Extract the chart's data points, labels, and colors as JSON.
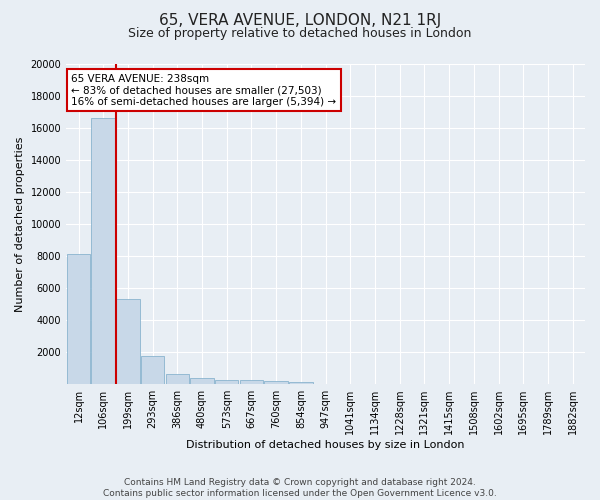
{
  "title": "65, VERA AVENUE, LONDON, N21 1RJ",
  "subtitle": "Size of property relative to detached houses in London",
  "xlabel": "Distribution of detached houses by size in London",
  "ylabel": "Number of detached properties",
  "categories": [
    "12sqm",
    "106sqm",
    "199sqm",
    "293sqm",
    "386sqm",
    "480sqm",
    "573sqm",
    "667sqm",
    "760sqm",
    "854sqm",
    "947sqm",
    "1041sqm",
    "1134sqm",
    "1228sqm",
    "1321sqm",
    "1415sqm",
    "1508sqm",
    "1602sqm",
    "1695sqm",
    "1789sqm",
    "1882sqm"
  ],
  "values": [
    8100,
    16600,
    5300,
    1750,
    650,
    350,
    270,
    230,
    200,
    160,
    0,
    0,
    0,
    0,
    0,
    0,
    0,
    0,
    0,
    0,
    0
  ],
  "bar_color": "#c8d8e8",
  "bar_edge_color": "#7aaac8",
  "vline_color": "#cc0000",
  "annotation_text": "65 VERA AVENUE: 238sqm\n← 83% of detached houses are smaller (27,503)\n16% of semi-detached houses are larger (5,394) →",
  "annotation_box_color": "#ffffff",
  "annotation_box_edge_color": "#cc0000",
  "ylim": [
    0,
    20000
  ],
  "yticks": [
    0,
    2000,
    4000,
    6000,
    8000,
    10000,
    12000,
    14000,
    16000,
    18000,
    20000
  ],
  "footer_line1": "Contains HM Land Registry data © Crown copyright and database right 2024.",
  "footer_line2": "Contains public sector information licensed under the Open Government Licence v3.0.",
  "bg_color": "#e8eef4",
  "plot_bg_color": "#e8eef4",
  "grid_color": "#ffffff",
  "title_fontsize": 11,
  "subtitle_fontsize": 9,
  "axis_label_fontsize": 8,
  "tick_fontsize": 7,
  "annotation_fontsize": 7.5,
  "footer_fontsize": 6.5
}
